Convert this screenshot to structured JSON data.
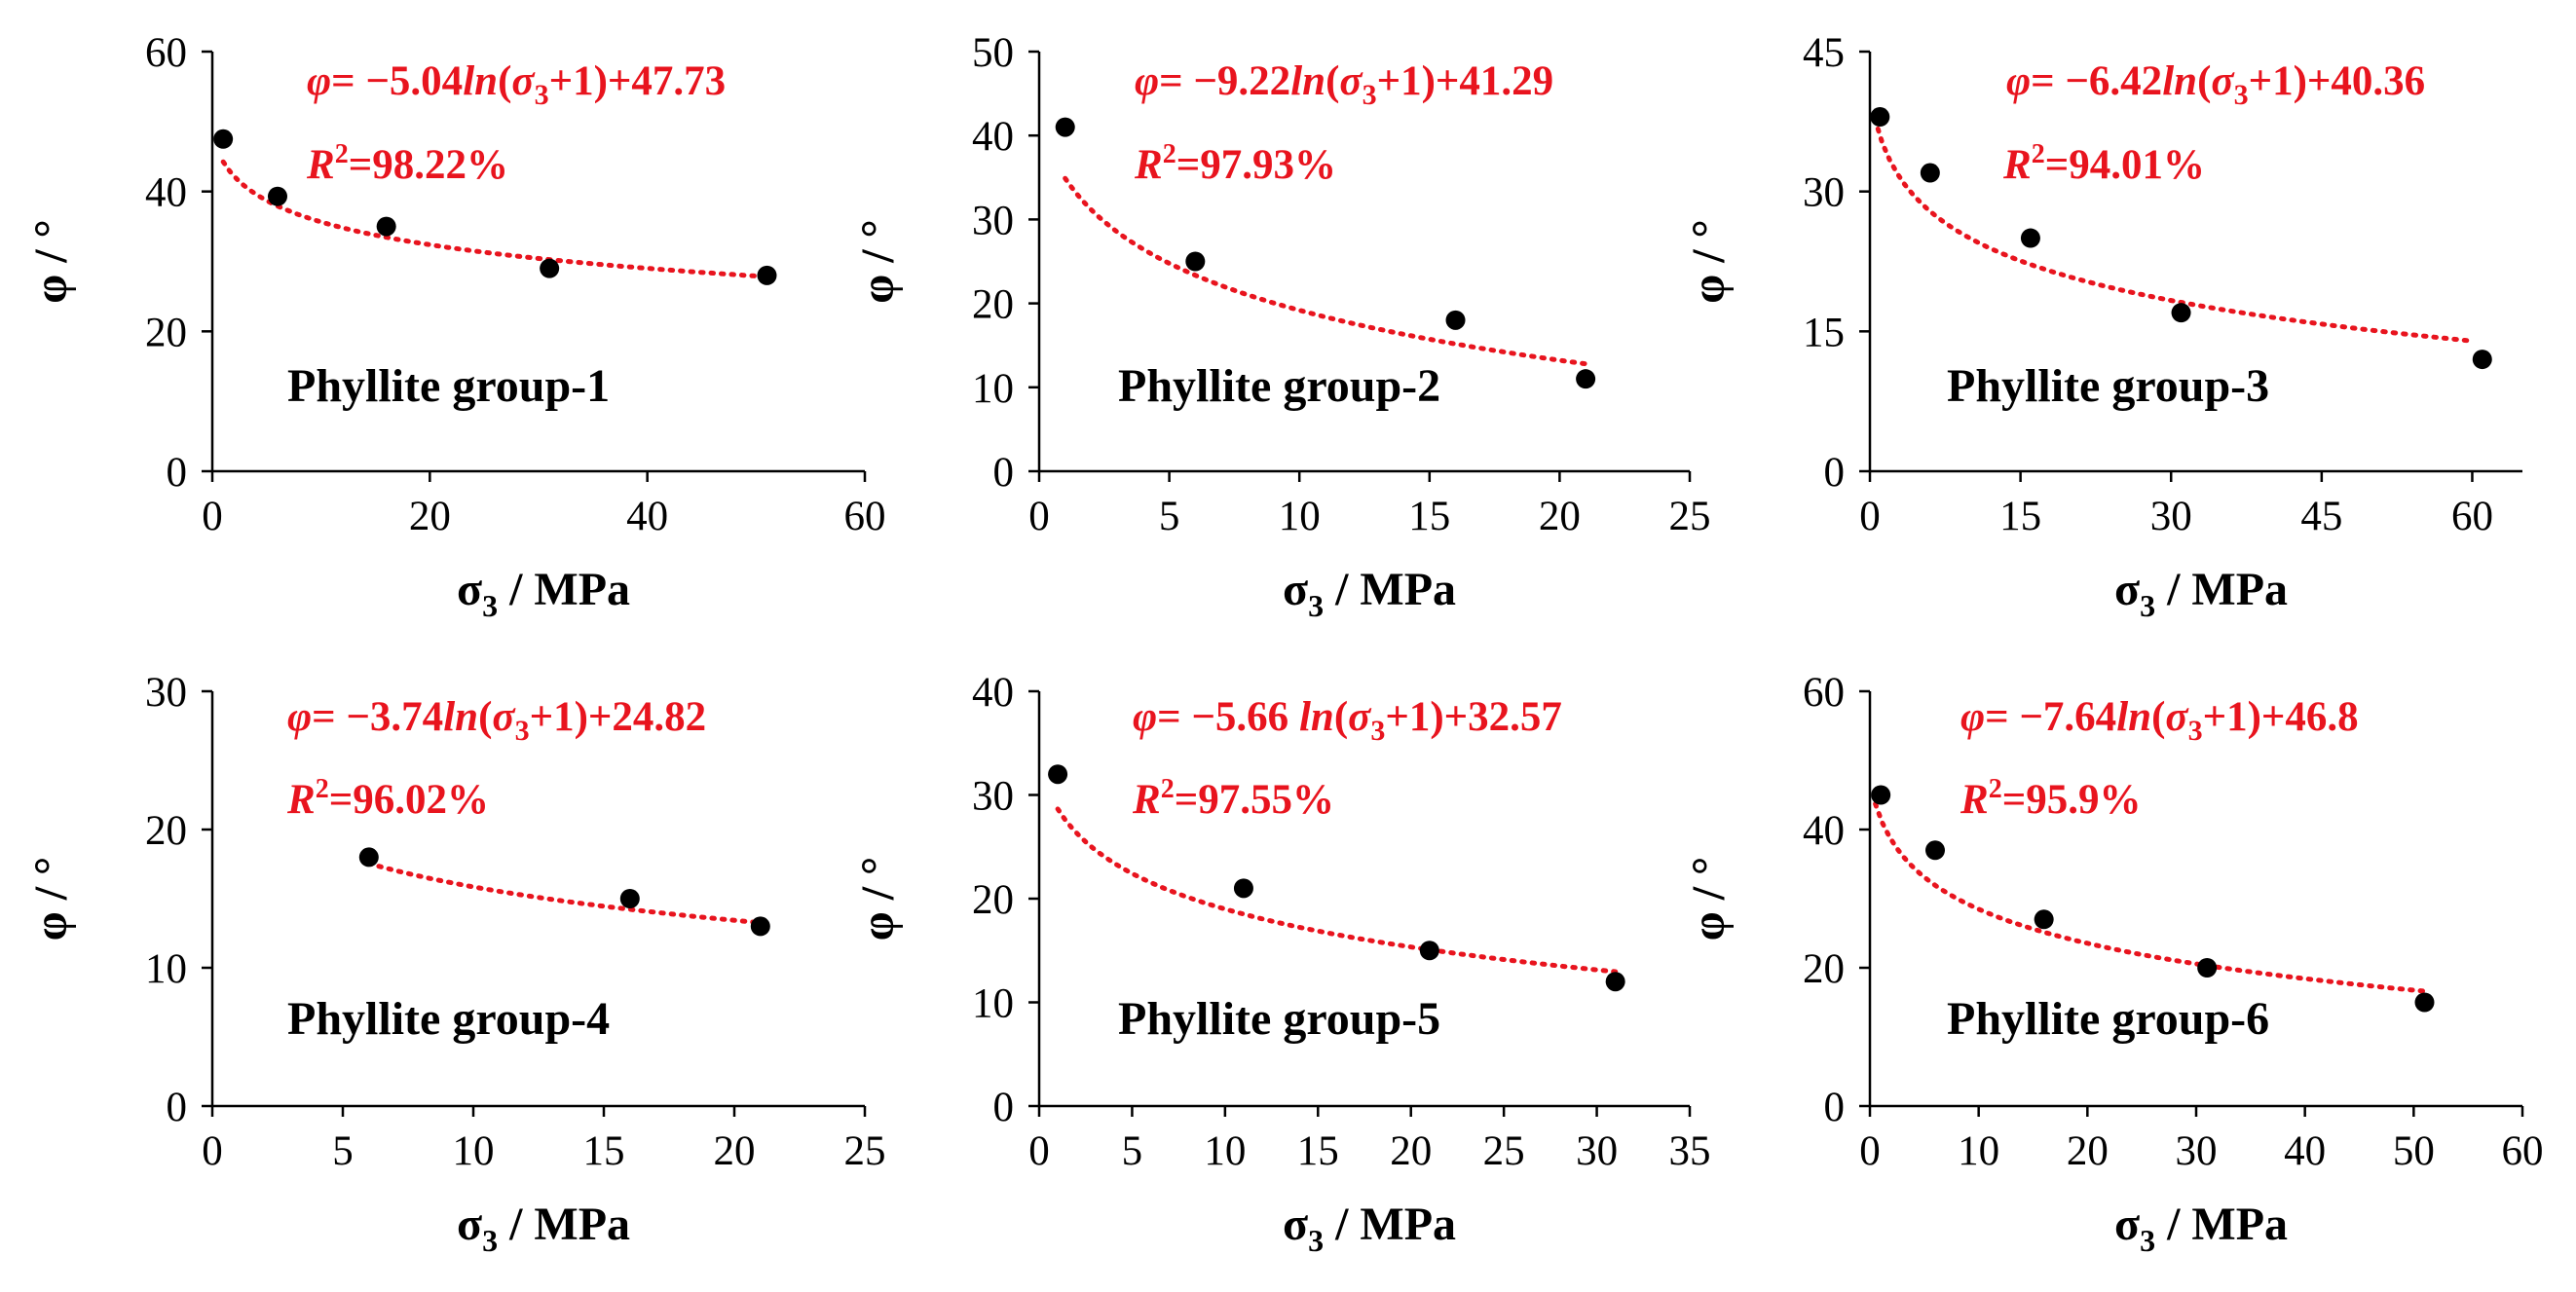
{
  "colors": {
    "trendline": "#e8141e",
    "points": "#000000",
    "axes": "#000000",
    "background": "#ffffff"
  },
  "chart_data": [
    {
      "type": "scatter",
      "title": "Phyllite group-1",
      "xlabel": "σ3 / MPa",
      "ylabel": "φ / °",
      "xlim": [
        0,
        60
      ],
      "ylim": [
        0,
        60
      ],
      "xticks": [
        0,
        20,
        40,
        60
      ],
      "yticks": [
        0,
        20,
        40,
        60
      ],
      "x": [
        1,
        6,
        16,
        31,
        51
      ],
      "y": [
        47.5,
        39.3,
        35,
        29,
        28
      ],
      "trend": {
        "a": -5.04,
        "b": 47.73,
        "x_range": [
          1,
          51
        ]
      },
      "equation": {
        "coef_text": "−5.04",
        "const_text": "+47.73"
      },
      "r2_text": "=98.22%"
    },
    {
      "type": "scatter",
      "title": "Phyllite group-2",
      "xlabel": "σ3 / MPa",
      "ylabel": "φ / °",
      "xlim": [
        0,
        25
      ],
      "ylim": [
        0,
        50
      ],
      "xticks": [
        0,
        5,
        10,
        15,
        20,
        25
      ],
      "yticks": [
        0,
        10,
        20,
        30,
        40,
        50
      ],
      "x": [
        1,
        6,
        16,
        21
      ],
      "y": [
        41,
        25,
        18,
        11
      ],
      "trend": {
        "a": -9.22,
        "b": 41.29,
        "x_range": [
          1,
          21
        ]
      },
      "equation": {
        "coef_text": "−9.22",
        "const_text": "+41.29"
      },
      "r2_text": "=97.93%"
    },
    {
      "type": "scatter",
      "title": "Phyllite group-3",
      "xlabel": "σ3 / MPa",
      "ylabel": "φ / °",
      "xlim": [
        0,
        65
      ],
      "ylim": [
        0,
        45
      ],
      "xticks": [
        0,
        15,
        30,
        45,
        60
      ],
      "yticks": [
        0,
        15,
        30,
        45
      ],
      "x": [
        1,
        6,
        16,
        31,
        61
      ],
      "y": [
        38,
        32,
        25,
        17,
        12
      ],
      "trend": {
        "a": -6.42,
        "b": 40.36,
        "x_range": [
          0.5,
          60
        ]
      },
      "equation": {
        "coef_text": "−6.42",
        "const_text": "+40.36"
      },
      "r2_text": "=94.01%"
    },
    {
      "type": "scatter",
      "title": "Phyllite group-4",
      "xlabel": "σ3 / MPa",
      "ylabel": "φ / °",
      "xlim": [
        0,
        25
      ],
      "ylim": [
        0,
        30
      ],
      "xticks": [
        0,
        5,
        10,
        15,
        20,
        25
      ],
      "yticks": [
        0,
        10,
        20,
        30
      ],
      "x": [
        6,
        16,
        21
      ],
      "y": [
        18,
        15,
        13
      ],
      "trend": {
        "a": -3.74,
        "b": 24.82,
        "x_range": [
          6,
          21
        ]
      },
      "equation": {
        "coef_text": "−3.74",
        "const_text": "+24.82"
      },
      "r2_text": "=96.02%"
    },
    {
      "type": "scatter",
      "title": "Phyllite group-5",
      "xlabel": "σ3 / MPa",
      "ylabel": "φ / °",
      "xlim": [
        0,
        35
      ],
      "ylim": [
        0,
        40
      ],
      "xticks": [
        0,
        5,
        10,
        15,
        20,
        25,
        30,
        35
      ],
      "yticks": [
        0,
        10,
        20,
        30,
        40
      ],
      "x": [
        1,
        11,
        21,
        31
      ],
      "y": [
        32,
        21,
        15,
        12
      ],
      "trend": {
        "a": -5.66,
        "b": 32.57,
        "x_range": [
          1,
          31
        ]
      },
      "equation": {
        "coef_text": "−5.66 ",
        "const_text": "+32.57"
      },
      "r2_text": "=97.55%"
    },
    {
      "type": "scatter",
      "title": "Phyllite group-6",
      "xlabel": "σ3 / MPa",
      "ylabel": "φ / °",
      "xlim": [
        0,
        60
      ],
      "ylim": [
        0,
        60
      ],
      "xticks": [
        0,
        10,
        20,
        30,
        40,
        50,
        60
      ],
      "yticks": [
        0,
        20,
        40,
        60
      ],
      "x": [
        1,
        6,
        16,
        31,
        51
      ],
      "y": [
        45,
        37,
        27,
        20,
        15
      ],
      "trend": {
        "a": -7.64,
        "b": 46.8,
        "x_range": [
          0.5,
          51
        ]
      },
      "equation": {
        "coef_text": "−7.64",
        "const_text": "+46.8"
      },
      "r2_text": "=95.9%"
    }
  ]
}
